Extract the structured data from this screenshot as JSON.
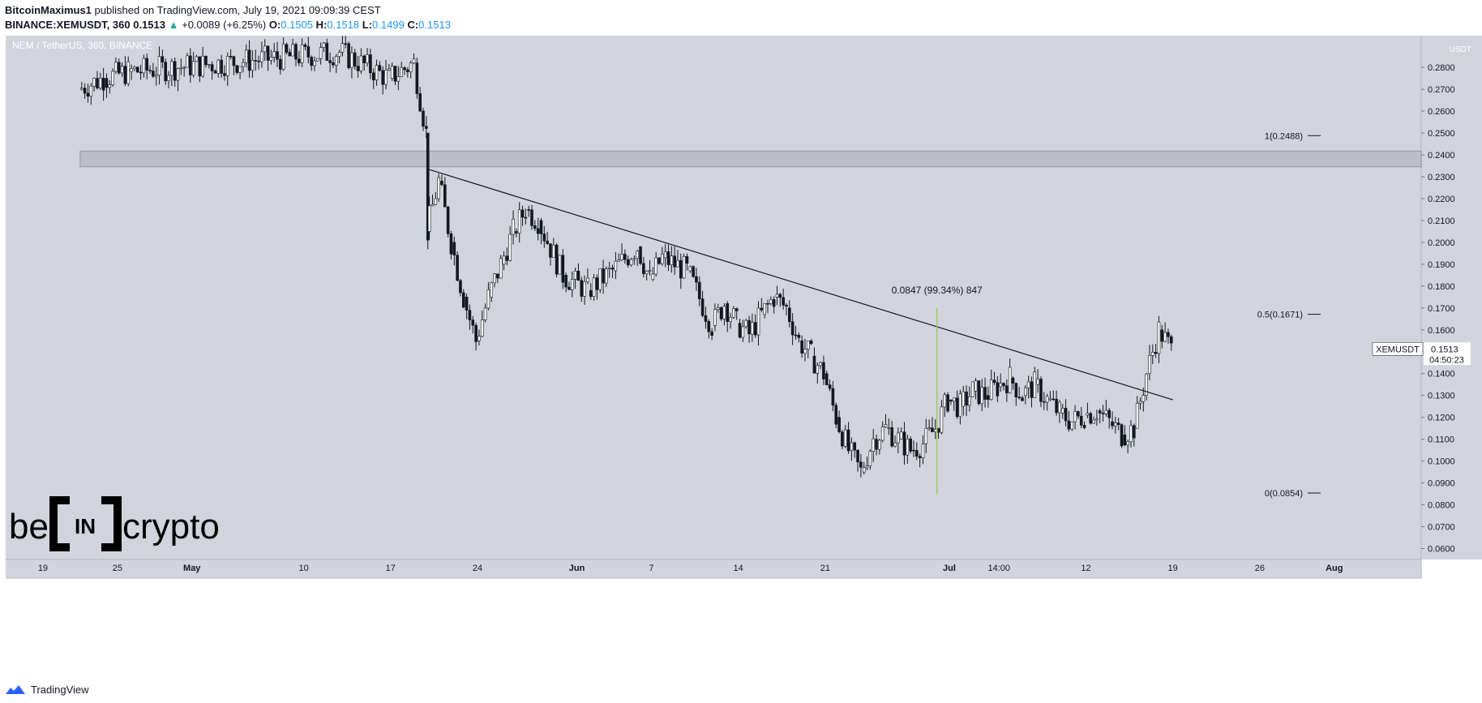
{
  "header": {
    "author": "BitcoinMaximus1",
    "published": "published on TradingView.com, July 19, 2021 09:09:39 CEST",
    "symbol": "BINANCE:XEMUSDT, 360",
    "last": "0.1513",
    "change": "+0.0089 (+6.25%)",
    "o_label": "O:",
    "o_value": "0.1505",
    "h_label": "H:",
    "h_value": "0.1518",
    "l_label": "L:",
    "l_value": "0.1499",
    "c_label": "C:",
    "c_value": "0.1513"
  },
  "chart_data": {
    "type": "candlestick",
    "title": "NEM / TetherUS, 360, BINANCE",
    "currency": "USDT",
    "ylim": [
      0.055,
      0.2945
    ],
    "y_ticks": [
      "0.0600",
      "0.0700",
      "0.0800",
      "0.0900",
      "0.1000",
      "0.1100",
      "0.1200",
      "0.1300",
      "0.1400",
      "0.1500",
      "0.1600",
      "0.1700",
      "0.1800",
      "0.1900",
      "0.2000",
      "0.2100",
      "0.2200",
      "0.2300",
      "0.2400",
      "0.2500",
      "0.2600",
      "0.2700",
      "0.2800"
    ],
    "x_ticks": [
      "19",
      "25",
      "May",
      "10",
      "17",
      "24",
      "Jun",
      "7",
      "14",
      "21",
      "Jul",
      "14:00",
      "12",
      "19",
      "26",
      "Aug"
    ],
    "x_range": [
      "2021-04-16",
      "2021-08-08"
    ],
    "x_tick_dates": [
      "2021-04-19",
      "2021-04-25",
      "2021-05-01",
      "2021-05-10",
      "2021-05-17",
      "2021-05-24",
      "2021-06-01",
      "2021-06-07",
      "2021-06-14",
      "2021-06-21",
      "2021-07-01",
      "2021-07-05",
      "2021-07-12",
      "2021-07-19",
      "2021-07-26",
      "2021-08-01"
    ],
    "price_path": [
      [
        "2021-04-22",
        0.27
      ],
      [
        "2021-04-24",
        0.275
      ],
      [
        "2021-04-26",
        0.278
      ],
      [
        "2021-05-13",
        0.287
      ],
      [
        "2021-05-17",
        0.275
      ],
      [
        "2021-05-19",
        0.282
      ],
      [
        "2021-05-20",
        0.25
      ],
      [
        "2021-05-20",
        0.205
      ],
      [
        "2021-05-21",
        0.228
      ],
      [
        "2021-05-22",
        0.2
      ],
      [
        "2021-05-23",
        0.175
      ],
      [
        "2021-05-24",
        0.155
      ],
      [
        "2021-05-25",
        0.175
      ],
      [
        "2021-05-26",
        0.19
      ],
      [
        "2021-05-27",
        0.205
      ],
      [
        "2021-05-28",
        0.215
      ],
      [
        "2021-05-29",
        0.21
      ],
      [
        "2021-05-31",
        0.185
      ],
      [
        "2021-06-02",
        0.178
      ],
      [
        "2021-06-04",
        0.187
      ],
      [
        "2021-06-06",
        0.198
      ],
      [
        "2021-06-07",
        0.183
      ],
      [
        "2021-06-08",
        0.193
      ],
      [
        "2021-06-10",
        0.187
      ],
      [
        "2021-06-12",
        0.162
      ],
      [
        "2021-06-13",
        0.172
      ],
      [
        "2021-06-14",
        0.163
      ],
      [
        "2021-06-15",
        0.158
      ],
      [
        "2021-06-16",
        0.167
      ],
      [
        "2021-06-17",
        0.175
      ],
      [
        "2021-06-18",
        0.17
      ],
      [
        "2021-06-19",
        0.155
      ],
      [
        "2021-06-20",
        0.148
      ],
      [
        "2021-06-21",
        0.14
      ],
      [
        "2021-06-22",
        0.12
      ],
      [
        "2021-06-23",
        0.105
      ],
      [
        "2021-06-24",
        0.095
      ],
      [
        "2021-06-25",
        0.11
      ],
      [
        "2021-06-26",
        0.115
      ],
      [
        "2021-06-27",
        0.11
      ],
      [
        "2021-06-28",
        0.105
      ],
      [
        "2021-06-29",
        0.108
      ],
      [
        "2021-06-30",
        0.115
      ],
      [
        "2021-07-01",
        0.128
      ],
      [
        "2021-07-02",
        0.125
      ],
      [
        "2021-07-03",
        0.132
      ],
      [
        "2021-07-04",
        0.13
      ],
      [
        "2021-07-05",
        0.134
      ],
      [
        "2021-07-06",
        0.138
      ],
      [
        "2021-07-07",
        0.13
      ],
      [
        "2021-07-08",
        0.135
      ],
      [
        "2021-07-09",
        0.128
      ],
      [
        "2021-07-10",
        0.122
      ],
      [
        "2021-07-11",
        0.118
      ],
      [
        "2021-07-12",
        0.121
      ],
      [
        "2021-07-13",
        0.123
      ],
      [
        "2021-07-14",
        0.118
      ],
      [
        "2021-07-15",
        0.112
      ],
      [
        "2021-07-16",
        0.115
      ],
      [
        "2021-07-17",
        0.14
      ],
      [
        "2021-07-18",
        0.16
      ],
      [
        "2021-07-19",
        0.151
      ]
    ],
    "resistance_zone": [
      0.2345,
      0.2418
    ],
    "descending_trendline": [
      [
        "2021-05-20",
        0.2335
      ],
      [
        "2021-07-19",
        0.128
      ]
    ],
    "fib_levels": [
      {
        "label": "1(0.2488)",
        "value": 0.2488
      },
      {
        "label": "0.5(0.1671)",
        "value": 0.1671
      },
      {
        "label": "0(0.0854)",
        "value": 0.0854
      }
    ],
    "measure": {
      "label": "0.0847 (99.34%) 847",
      "date": "2021-06-30",
      "from": 0.085,
      "to": 0.17
    },
    "last_price": {
      "symbol": "XEMUSDT",
      "price": "0.1513",
      "countdown": "04:50:23"
    }
  },
  "watermark": {
    "left": "be",
    "mid": "IN",
    "right": "crypto"
  },
  "footer": {
    "brand": "TradingView"
  },
  "colors": {
    "background": "#d1d4dc",
    "candles": "#131722",
    "measure": "#9ccc65",
    "zone": "#b2b5be"
  }
}
